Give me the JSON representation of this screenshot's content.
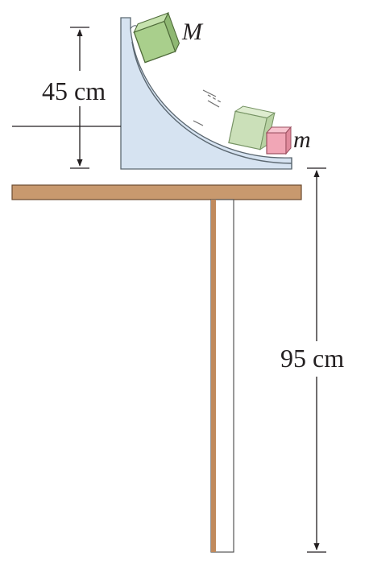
{
  "labels": {
    "big_mass": "M",
    "small_mass": "m",
    "ramp_height": "45 cm",
    "table_height": "95 cm"
  },
  "colors": {
    "ramp_fill": "#d6e3f1",
    "ramp_stroke": "#5b6770",
    "block_M_fill": "#a9cf8c",
    "block_m_fill": "#f1a6b6",
    "table_fill": "#c8996e",
    "leg_fill": "#c08a5d",
    "line": "#231f20"
  }
}
